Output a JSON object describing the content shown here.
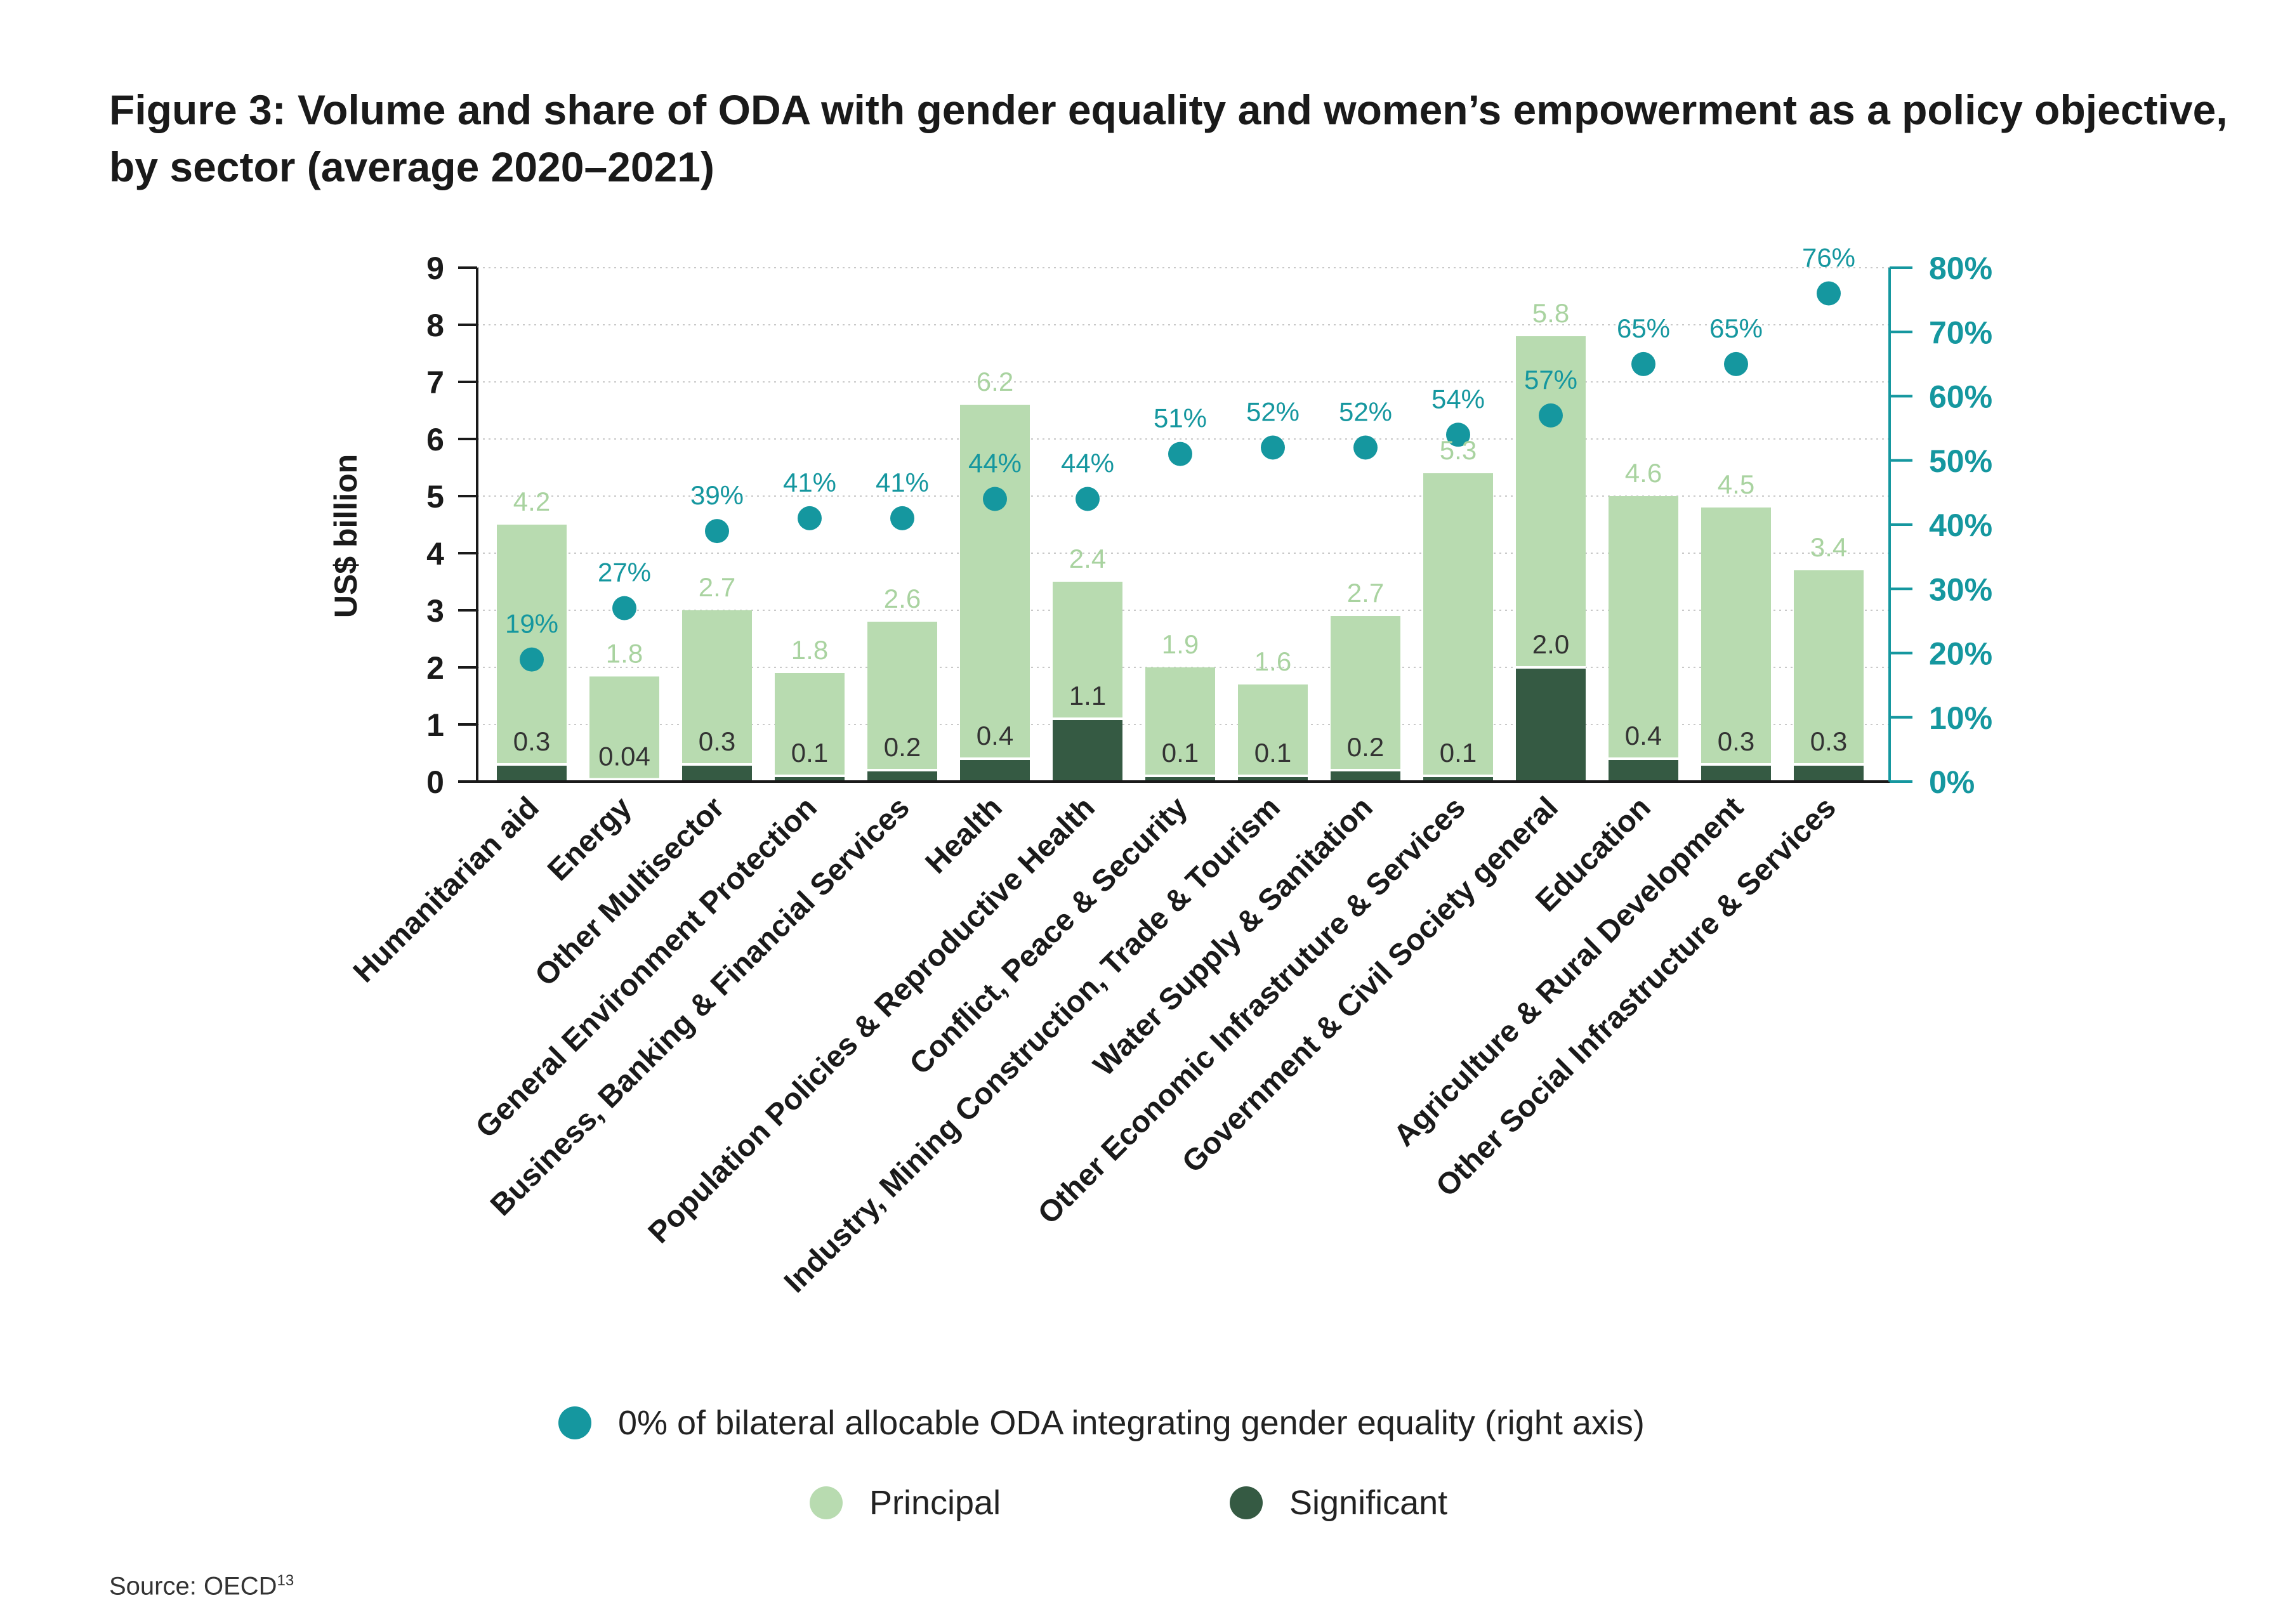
{
  "title": {
    "line1": "Figure 3: Volume and share of ODA with gender equality and women’s empowerment as a policy objective,",
    "line2": "by sector (average 2020–2021)"
  },
  "source": {
    "text": "Source: OECD",
    "note": "13"
  },
  "colors": {
    "principal": "#b8dbb0",
    "significant": "#355a43",
    "share": "#15979f",
    "axis_left": "#1a1a1a",
    "axis_right": "#15979f"
  },
  "chart_data": {
    "type": "bar",
    "stacked": true,
    "ylabel": "US$ billion",
    "ylim": [
      0,
      9
    ],
    "y_ticks": [
      "0",
      "1",
      "2",
      "3",
      "4",
      "5",
      "6",
      "7",
      "8",
      "9"
    ],
    "y2lim": [
      0,
      80
    ],
    "y2_ticks": [
      "0%",
      "10%",
      "20%",
      "30%",
      "40%",
      "50%",
      "60%",
      "70%",
      "80%"
    ],
    "grid": true,
    "categories": [
      "Humanitarian aid",
      "Energy",
      "Other Multisector",
      "General Environment Protection",
      "Business, Banking & Financial Services",
      "Health",
      "Population Policies & Reproductive Health",
      "Conflict, Peace & Security",
      "Industry, Mining Construction, Trade & Tourism",
      "Water Supply & Sanitation",
      "Other Economic Infrastruture & Services",
      "Government & Civil Society general",
      "Education",
      "Agriculture & Rural Development",
      "Other Social Infrastructure & Services"
    ],
    "series": [
      {
        "name": "Significant",
        "values": [
          0.3,
          0.04,
          0.3,
          0.1,
          0.2,
          0.4,
          1.1,
          0.1,
          0.1,
          0.2,
          0.1,
          2.0,
          0.4,
          0.3,
          0.3
        ],
        "labels": [
          "0.3",
          "0.04",
          "0.3",
          "0.1",
          "0.2",
          "0.4",
          "1.1",
          "0.1",
          "0.1",
          "0.2",
          "0.1",
          "2.0",
          "0.4",
          "0.3",
          "0.3"
        ]
      },
      {
        "name": "Principal",
        "values": [
          4.2,
          1.8,
          2.7,
          1.8,
          2.6,
          6.2,
          2.4,
          1.9,
          1.6,
          2.7,
          5.3,
          5.8,
          4.6,
          4.5,
          3.4
        ],
        "labels": [
          "4.2",
          "1.8",
          "2.7",
          "1.8",
          "2.6",
          "6.2",
          "2.4",
          "1.9",
          "1.6",
          "2.7",
          "5.3",
          "5.8",
          "4.6",
          "4.5",
          "3.4"
        ]
      },
      {
        "name": "0% of bilateral allocable ODA integrating gender equality (right axis)",
        "type": "scatter",
        "axis": "right",
        "values": [
          19,
          27,
          39,
          41,
          41,
          44,
          44,
          51,
          52,
          52,
          54,
          57,
          65,
          65,
          76
        ],
        "labels": [
          "19%",
          "27%",
          "39%",
          "41%",
          "41%",
          "44%",
          "44%",
          "51%",
          "52%",
          "52%",
          "54%",
          "57%",
          "65%",
          "65%",
          "76%"
        ]
      }
    ],
    "legend": [
      "0% of bilateral allocable ODA integrating gender equality (right axis)",
      "Principal",
      "Significant"
    ],
    "legend_position": "bottom"
  }
}
